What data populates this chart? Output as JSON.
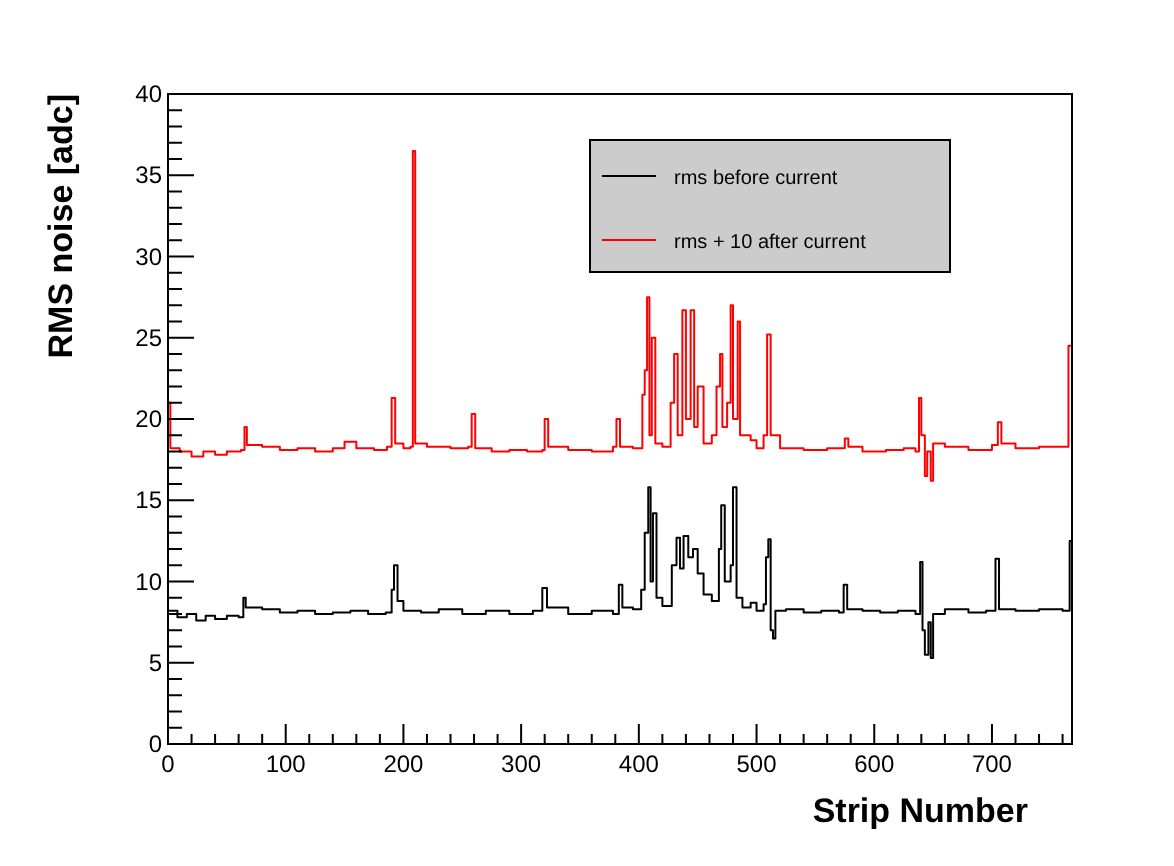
{
  "chart_data": {
    "type": "step",
    "xlabel": "Strip Number",
    "ylabel": "RMS noise [adc]",
    "xlim": [
      0,
      768
    ],
    "ylim": [
      0,
      40
    ],
    "xticks": [
      0,
      100,
      200,
      300,
      400,
      500,
      600,
      700
    ],
    "yticks": [
      0,
      5,
      10,
      15,
      20,
      25,
      30,
      35,
      40
    ],
    "legend": "top right",
    "grid": false,
    "series": [
      {
        "name": "rms before current",
        "color": "#000000",
        "x": [
          0,
          8,
          16,
          24,
          32,
          40,
          50,
          60,
          64,
          66,
          80,
          95,
          110,
          125,
          140,
          155,
          170,
          185,
          190,
          192,
          195,
          200,
          215,
          230,
          250,
          270,
          290,
          310,
          318,
          322,
          340,
          360,
          378,
          383,
          386,
          395,
          402,
          405,
          408,
          410,
          412,
          415,
          420,
          428,
          432,
          435,
          438,
          442,
          446,
          450,
          455,
          462,
          468,
          470,
          473,
          478,
          480,
          483,
          488,
          495,
          500,
          506,
          508,
          510,
          512,
          514,
          516,
          525,
          540,
          555,
          570,
          574,
          577,
          590,
          605,
          620,
          635,
          639,
          641,
          643,
          646,
          648,
          650,
          660,
          680,
          695,
          703,
          706,
          720,
          740,
          760,
          766,
          768
        ],
        "values": [
          8.2,
          7.8,
          8.0,
          7.6,
          7.9,
          7.7,
          7.9,
          7.8,
          9.0,
          8.4,
          8.3,
          8.1,
          8.2,
          8.0,
          8.1,
          8.2,
          8.0,
          8.1,
          9.5,
          11.0,
          8.8,
          8.2,
          8.1,
          8.3,
          8.0,
          8.2,
          8.0,
          8.2,
          9.6,
          8.4,
          8.0,
          8.2,
          8.0,
          9.8,
          8.4,
          8.3,
          9.5,
          13.0,
          15.8,
          10.0,
          14.2,
          9.0,
          8.5,
          11.0,
          12.7,
          10.8,
          12.8,
          11.5,
          12.0,
          10.5,
          9.2,
          8.8,
          12.0,
          14.7,
          10.0,
          11.0,
          15.8,
          9.0,
          8.4,
          8.7,
          8.2,
          8.6,
          11.5,
          12.6,
          7.0,
          6.5,
          8.2,
          8.3,
          8.1,
          8.2,
          8.1,
          9.8,
          8.3,
          8.2,
          8.1,
          8.2,
          8.0,
          11.2,
          7.0,
          5.5,
          7.5,
          5.3,
          8.0,
          8.3,
          8.1,
          8.2,
          11.4,
          8.3,
          8.2,
          8.3,
          8.2,
          12.5,
          12.5
        ]
      },
      {
        "name": "rms + 10 after current",
        "color": "#ff0000",
        "x": [
          0,
          2,
          10,
          20,
          30,
          40,
          50,
          62,
          65,
          67,
          80,
          95,
          110,
          125,
          140,
          150,
          160,
          175,
          186,
          190,
          193,
          200,
          206,
          208,
          210,
          220,
          240,
          255,
          258,
          261,
          275,
          290,
          305,
          318,
          320,
          323,
          340,
          360,
          378,
          381,
          384,
          395,
          403,
          405,
          407,
          409,
          411,
          414,
          420,
          427,
          430,
          433,
          437,
          440,
          444,
          447,
          450,
          455,
          462,
          466,
          469,
          471,
          475,
          478,
          480,
          484,
          486,
          495,
          500,
          506,
          509,
          512,
          520,
          540,
          560,
          575,
          578,
          590,
          610,
          625,
          635,
          638,
          640,
          643,
          645,
          648,
          650,
          660,
          680,
          700,
          705,
          708,
          720,
          740,
          760,
          765,
          768
        ],
        "values": [
          21.0,
          18.2,
          18.0,
          17.7,
          18.0,
          17.8,
          18.0,
          18.1,
          19.5,
          18.4,
          18.3,
          18.1,
          18.2,
          18.0,
          18.2,
          18.6,
          18.2,
          18.1,
          18.3,
          21.3,
          18.5,
          18.2,
          18.3,
          36.5,
          18.5,
          18.3,
          18.2,
          18.3,
          20.3,
          18.2,
          18.0,
          18.1,
          18.0,
          18.1,
          20.0,
          18.3,
          18.1,
          18.0,
          18.3,
          20.0,
          18.3,
          18.2,
          21.5,
          23.0,
          27.5,
          19.0,
          25.0,
          18.5,
          18.3,
          21.0,
          24.0,
          19.0,
          26.7,
          20.0,
          26.7,
          19.5,
          22.0,
          18.5,
          19.0,
          22.0,
          24.0,
          19.5,
          21.0,
          27.0,
          20.0,
          26.0,
          19.0,
          18.7,
          18.2,
          19.0,
          25.2,
          19.0,
          18.2,
          18.1,
          18.2,
          18.8,
          18.3,
          18.0,
          18.1,
          18.2,
          18.0,
          21.3,
          19.0,
          16.5,
          18.0,
          16.2,
          18.5,
          18.3,
          18.1,
          18.4,
          19.8,
          18.5,
          18.2,
          18.3,
          18.3,
          24.5,
          24.5
        ]
      }
    ]
  }
}
